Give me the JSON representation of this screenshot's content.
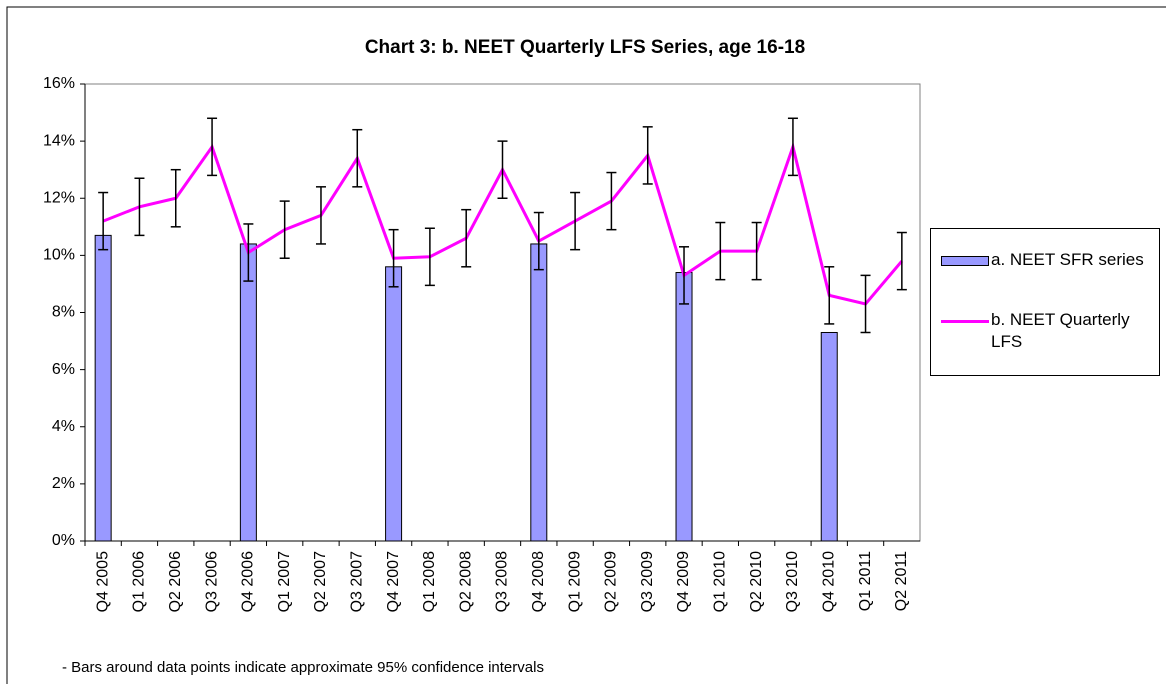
{
  "chart_data": {
    "type": "bar-line",
    "title": "Chart 3: b. NEET Quarterly LFS Series, age 16-18",
    "footnote": "- Bars around data points indicate approximate 95% confidence intervals",
    "categories": [
      "Q4 2005",
      "Q1 2006",
      "Q2 2006",
      "Q3 2006",
      "Q4 2006",
      "Q1 2007",
      "Q2 2007",
      "Q3 2007",
      "Q4 2007",
      "Q1 2008",
      "Q2 2008",
      "Q3 2008",
      "Q4 2008",
      "Q1 2009",
      "Q2 2009",
      "Q3 2009",
      "Q4 2009",
      "Q1 2010",
      "Q2 2010",
      "Q3 2010",
      "Q4 2010",
      "Q1 2011",
      "Q2 2011"
    ],
    "series": [
      {
        "name": "a. NEET SFR series",
        "type": "bar",
        "color": "#9999ff",
        "values": [
          10.7,
          null,
          null,
          null,
          10.4,
          null,
          null,
          null,
          9.6,
          null,
          null,
          null,
          10.4,
          null,
          null,
          null,
          9.4,
          null,
          null,
          null,
          7.3,
          null,
          null
        ]
      },
      {
        "name": "b. NEET Quarterly LFS",
        "type": "line",
        "color": "#ff00ff",
        "values": [
          11.2,
          11.7,
          12.0,
          13.8,
          10.1,
          10.9,
          11.4,
          13.4,
          9.9,
          9.95,
          10.6,
          13.0,
          10.5,
          11.2,
          11.9,
          13.5,
          9.3,
          10.15,
          10.15,
          13.8,
          8.6,
          8.3,
          9.8
        ],
        "errors": [
          1.0,
          1.0,
          1.0,
          1.0,
          1.0,
          1.0,
          1.0,
          1.0,
          1.0,
          1.0,
          1.0,
          1.0,
          1.0,
          1.0,
          1.0,
          1.0,
          1.0,
          1.0,
          1.0,
          1.0,
          1.0,
          1.0,
          1.0
        ]
      }
    ],
    "ylim": [
      0,
      16
    ],
    "yticks": [
      {
        "value": 0,
        "label": "0%"
      },
      {
        "value": 2,
        "label": "2%"
      },
      {
        "value": 4,
        "label": "4%"
      },
      {
        "value": 6,
        "label": "6%"
      },
      {
        "value": 8,
        "label": "8%"
      },
      {
        "value": 10,
        "label": "10%"
      },
      {
        "value": 12,
        "label": "12%"
      },
      {
        "value": 14,
        "label": "14%"
      },
      {
        "value": 16,
        "label": "16%"
      }
    ],
    "grid": false,
    "legend": "right"
  }
}
